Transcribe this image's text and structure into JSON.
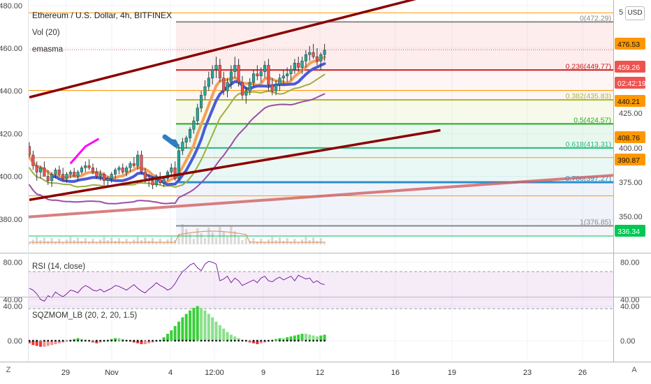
{
  "header": {
    "title": "Ethereum / U.S. Dollar, 4h, BITFINEX",
    "indicator_vol": "Vol (20)",
    "indicator_ma": "emasma",
    "currency_button": "USD"
  },
  "footer": {
    "z_label": "Z",
    "a_label": "A"
  },
  "colors": {
    "up": "#26a69a",
    "down": "#ef5350",
    "trend": "#8b0000",
    "blue_ma": "#4a5ad8",
    "orange_ma": "#f4a05a",
    "green_ma": "#9bb040",
    "purple_ma": "#9a4ea8",
    "magenta": "#ff00ff",
    "fib_red": "#c81e1e",
    "fib_green": "#22aa22",
    "fib_blue": "#2a8ed0",
    "fib_gray": "#888888",
    "rsi_line": "#7b1fa2",
    "mom_green": "#38d038",
    "mom_red": "#e53935"
  },
  "chart_data": [
    {
      "type": "candlestick",
      "title": "Ethereum / U.S. Dollar, 4h, BITFINEX",
      "ylim": [
        370,
        480
      ],
      "y_ticks": [
        "480.00",
        "460.00",
        "440.00",
        "420.00",
        "400.00",
        "380.00"
      ],
      "x_ticks": [
        "29",
        "Nov",
        "4",
        "12:00",
        "9",
        "12",
        "16",
        "19",
        "23",
        "26"
      ],
      "candles": [
        [
          414,
          416,
          409,
          410
        ],
        [
          410,
          412,
          403,
          405
        ],
        [
          405,
          407,
          398,
          402
        ],
        [
          402,
          405,
          399,
          404
        ],
        [
          404,
          407,
          401,
          400
        ],
        [
          400,
          403,
          396,
          398
        ],
        [
          398,
          402,
          395,
          401
        ],
        [
          401,
          404,
          399,
          403
        ],
        [
          403,
          405,
          400,
          401
        ],
        [
          401,
          404,
          398,
          399
        ],
        [
          399,
          402,
          397,
          401
        ],
        [
          401,
          403,
          399,
          402
        ],
        [
          402,
          404,
          400,
          400
        ],
        [
          400,
          403,
          398,
          402
        ],
        [
          402,
          405,
          401,
          404
        ],
        [
          404,
          407,
          402,
          405
        ],
        [
          405,
          408,
          403,
          404
        ],
        [
          404,
          406,
          401,
          402
        ],
        [
          402,
          404,
          399,
          400
        ],
        [
          400,
          403,
          398,
          401
        ],
        [
          401,
          402,
          396,
          398
        ],
        [
          398,
          400,
          395,
          399
        ],
        [
          399,
          402,
          397,
          401
        ],
        [
          401,
          404,
          399,
          403
        ],
        [
          403,
          405,
          401,
          404
        ],
        [
          404,
          406,
          401,
          402
        ],
        [
          402,
          405,
          400,
          404
        ],
        [
          404,
          407,
          402,
          406
        ],
        [
          406,
          409,
          404,
          405
        ],
        [
          405,
          412,
          403,
          410
        ],
        [
          410,
          412,
          401,
          402
        ],
        [
          402,
          404,
          397,
          399
        ],
        [
          399,
          401,
          395,
          398
        ],
        [
          398,
          400,
          394,
          396
        ],
        [
          396,
          401,
          395,
          400
        ],
        [
          400,
          402,
          396,
          397
        ],
        [
          397,
          400,
          395,
          399
        ],
        [
          399,
          403,
          398,
          402
        ],
        [
          402,
          406,
          400,
          404
        ],
        [
          404,
          407,
          398,
          399
        ],
        [
          399,
          415,
          398,
          412
        ],
        [
          412,
          418,
          410,
          416
        ],
        [
          416,
          419,
          413,
          418
        ],
        [
          418,
          423,
          416,
          422
        ],
        [
          422,
          428,
          420,
          426
        ],
        [
          426,
          434,
          424,
          432
        ],
        [
          432,
          440,
          430,
          438
        ],
        [
          438,
          445,
          436,
          442
        ],
        [
          442,
          449,
          440,
          446
        ],
        [
          446,
          452,
          443,
          450
        ],
        [
          450,
          456,
          446,
          452
        ],
        [
          452,
          455,
          444,
          446
        ],
        [
          446,
          449,
          438,
          440
        ],
        [
          440,
          446,
          437,
          444
        ],
        [
          444,
          452,
          441,
          449
        ],
        [
          449,
          456,
          446,
          452
        ],
        [
          452,
          455,
          442,
          444
        ],
        [
          444,
          447,
          436,
          438
        ],
        [
          438,
          442,
          434,
          440
        ],
        [
          440,
          446,
          438,
          444
        ],
        [
          444,
          450,
          442,
          448
        ],
        [
          448,
          452,
          445,
          447
        ],
        [
          447,
          451,
          444,
          449
        ],
        [
          449,
          454,
          446,
          452
        ],
        [
          452,
          455,
          440,
          443
        ],
        [
          443,
          446,
          438,
          440
        ],
        [
          440,
          445,
          438,
          443
        ],
        [
          443,
          448,
          440,
          446
        ],
        [
          446,
          450,
          443,
          447
        ],
        [
          447,
          451,
          444,
          448
        ],
        [
          448,
          452,
          445,
          450
        ],
        [
          450,
          455,
          448,
          453
        ],
        [
          453,
          456,
          449,
          451
        ],
        [
          451,
          456,
          448,
          454
        ],
        [
          454,
          459,
          451,
          457
        ],
        [
          457,
          461,
          454,
          458
        ],
        [
          458,
          462,
          455,
          456
        ],
        [
          456,
          460,
          452,
          454
        ],
        [
          454,
          458,
          450,
          457
        ],
        [
          457,
          462,
          454,
          459
        ]
      ],
      "trendlines": [
        {
          "from": [
            0,
            437.0
          ],
          "to": [
            110,
            486.0
          ]
        },
        {
          "from": [
            0,
            389.0
          ],
          "to": [
            110,
            421.6
          ]
        }
      ],
      "fibonacci": [
        {
          "label": "0(472.29)",
          "value": 472.29
        },
        {
          "label": "0.236(449.77)",
          "value": 449.77
        },
        {
          "label": "0.382(435.83)",
          "value": 435.83
        },
        {
          "label": "0.5(424.57)",
          "value": 424.57
        },
        {
          "label": "0.618(413.31)",
          "value": 413.31
        },
        {
          "label": "0.786(397.27)",
          "value": 397.27
        },
        {
          "label": "1(376.85)",
          "value": 376.85
        }
      ],
      "horizontal_levels": [
        476.53,
        440.21,
        408.76,
        390.87,
        336.34
      ],
      "right_scale_ticks": [
        "5",
        "425.00",
        "400.00",
        "375.00",
        "350.00"
      ],
      "price_tags": [
        {
          "label": "476.53",
          "color": "#ff9800"
        },
        {
          "label": "459.26",
          "color": "#ef5350"
        },
        {
          "label": "02:42:19",
          "color": "#ef5350"
        },
        {
          "label": "440.21",
          "color": "#ff9800"
        },
        {
          "label": "408.76",
          "color": "#ff9800"
        },
        {
          "label": "390.87",
          "color": "#ff9800"
        },
        {
          "label": "336.34",
          "color": "#00c853"
        }
      ]
    },
    {
      "type": "line",
      "title": "RSI (14, close)",
      "ylim": [
        25,
        90
      ],
      "y_ticks": [
        "80.00",
        "40.00"
      ],
      "bands": [
        70,
        30
      ],
      "values": [
        52,
        50,
        46,
        40,
        38,
        44,
        42,
        48,
        45,
        43,
        46,
        50,
        49,
        47,
        52,
        55,
        53,
        50,
        49,
        51,
        48,
        50,
        52,
        55,
        54,
        52,
        50,
        53,
        56,
        52,
        49,
        47,
        51,
        54,
        58,
        55,
        53,
        50,
        52,
        57,
        64,
        70,
        73,
        77,
        79,
        74,
        71,
        78,
        81,
        80,
        78,
        60,
        62,
        65,
        58,
        63,
        60,
        55,
        57,
        59,
        61,
        58,
        63,
        65,
        60,
        59,
        62,
        64,
        61,
        63,
        65,
        60,
        66,
        64,
        62,
        63,
        58,
        60,
        57,
        56
      ]
    },
    {
      "type": "bar",
      "title": "SQZMOM_LB (20, 2, 20, 1.5)",
      "ylim": [
        -15,
        50
      ],
      "y_ticks": [
        "40.00",
        "0.00"
      ],
      "values": [
        -3,
        -5,
        -6,
        -7,
        -7,
        -6,
        -5,
        -4,
        -3,
        -2,
        -1,
        1,
        2,
        3,
        2,
        1,
        -1,
        -2,
        -3,
        -2,
        -1,
        1,
        2,
        3,
        3,
        2,
        1,
        -1,
        -2,
        -3,
        -4,
        -4,
        -3,
        -2,
        -1,
        1,
        4,
        8,
        12,
        17,
        22,
        27,
        31,
        35,
        38,
        40,
        38,
        35,
        31,
        27,
        22,
        18,
        14,
        10,
        7,
        5,
        3,
        1,
        -1,
        -2,
        -3,
        -4,
        -3,
        -2,
        -1,
        1,
        2,
        3,
        3,
        4,
        5,
        6,
        7,
        8,
        8,
        7,
        6,
        5,
        6,
        7
      ]
    }
  ]
}
